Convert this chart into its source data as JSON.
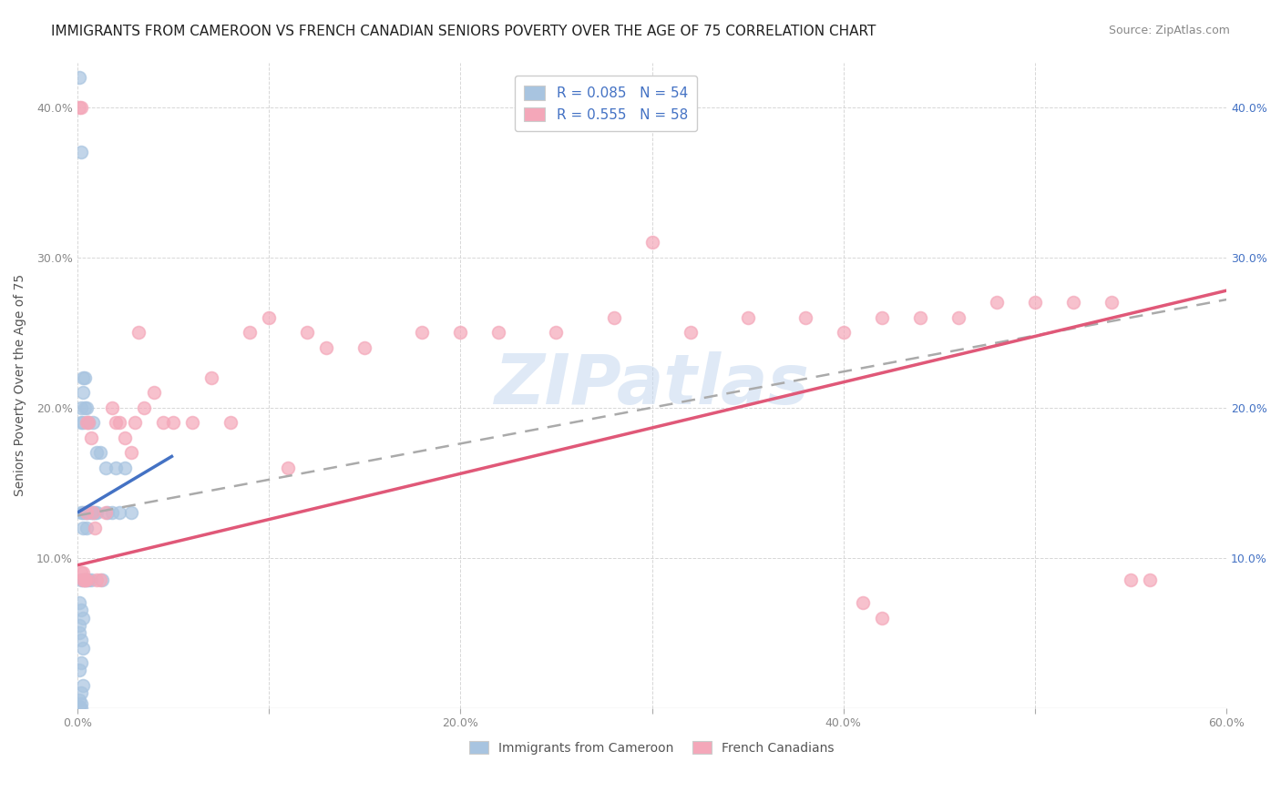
{
  "title": "IMMIGRANTS FROM CAMEROON VS FRENCH CANADIAN SENIORS POVERTY OVER THE AGE OF 75 CORRELATION CHART",
  "source": "Source: ZipAtlas.com",
  "ylabel": "Seniors Poverty Over the Age of 75",
  "xlim": [
    0.0,
    0.6
  ],
  "ylim": [
    0.0,
    0.43
  ],
  "xticks": [
    0.0,
    0.1,
    0.2,
    0.3,
    0.4,
    0.5,
    0.6
  ],
  "yticks": [
    0.0,
    0.1,
    0.2,
    0.3,
    0.4
  ],
  "xticklabels": [
    "0.0%",
    "",
    "20.0%",
    "",
    "40.0%",
    "",
    "60.0%"
  ],
  "yticklabels_left": [
    "",
    "10.0%",
    "20.0%",
    "30.0%",
    "40.0%"
  ],
  "yticklabels_right": [
    "",
    "10.0%",
    "20.0%",
    "30.0%",
    "40.0%"
  ],
  "legend_blue_label": "R = 0.085   N = 54",
  "legend_pink_label": "R = 0.555   N = 58",
  "legend_bottom_blue": "Immigrants from Cameroon",
  "legend_bottom_pink": "French Canadians",
  "blue_color": "#a8c4e0",
  "pink_color": "#f4a7b9",
  "blue_line_color": "#4472c4",
  "pink_line_color": "#e05878",
  "dash_line_color": "#aaaaaa",
  "watermark": "ZIPatlas",
  "bg_color": "#ffffff",
  "grid_color": "#d3d3d3",
  "blue_line_x0": 0.0,
  "blue_line_x1": 0.05,
  "blue_line_y0": 0.13,
  "blue_line_y1": 0.168,
  "pink_line_x0": 0.0,
  "pink_line_x1": 0.6,
  "pink_line_y0": 0.095,
  "pink_line_y1": 0.278,
  "dash_line_x0": 0.0,
  "dash_line_x1": 0.6,
  "dash_line_y0": 0.128,
  "dash_line_y1": 0.272,
  "title_fontsize": 11,
  "axis_fontsize": 10,
  "tick_fontsize": 9,
  "source_fontsize": 9,
  "blue_scatter_x": [
    0.001,
    0.001,
    0.002,
    0.002,
    0.002,
    0.002,
    0.002,
    0.003,
    0.003,
    0.003,
    0.003,
    0.003,
    0.003,
    0.004,
    0.004,
    0.004,
    0.004,
    0.005,
    0.005,
    0.005,
    0.005,
    0.006,
    0.006,
    0.006,
    0.007,
    0.007,
    0.008,
    0.008,
    0.009,
    0.01,
    0.01,
    0.012,
    0.013,
    0.015,
    0.016,
    0.018,
    0.02,
    0.022,
    0.025,
    0.028,
    0.001,
    0.002,
    0.003,
    0.001,
    0.002,
    0.003,
    0.002,
    0.001,
    0.003,
    0.002,
    0.001,
    0.002,
    0.001,
    0.002
  ],
  "blue_scatter_y": [
    0.42,
    0.055,
    0.37,
    0.2,
    0.19,
    0.13,
    0.085,
    0.22,
    0.21,
    0.19,
    0.13,
    0.12,
    0.085,
    0.22,
    0.2,
    0.13,
    0.085,
    0.2,
    0.13,
    0.12,
    0.085,
    0.19,
    0.13,
    0.085,
    0.13,
    0.085,
    0.19,
    0.13,
    0.13,
    0.17,
    0.13,
    0.17,
    0.085,
    0.16,
    0.13,
    0.13,
    0.16,
    0.13,
    0.16,
    0.13,
    0.07,
    0.065,
    0.06,
    0.05,
    0.045,
    0.04,
    0.03,
    0.025,
    0.015,
    0.01,
    0.005,
    0.003,
    0.001,
    0.0
  ],
  "pink_scatter_x": [
    0.001,
    0.002,
    0.003,
    0.004,
    0.005,
    0.005,
    0.006,
    0.007,
    0.008,
    0.009,
    0.01,
    0.012,
    0.015,
    0.018,
    0.02,
    0.022,
    0.025,
    0.028,
    0.03,
    0.032,
    0.035,
    0.04,
    0.045,
    0.05,
    0.06,
    0.07,
    0.08,
    0.09,
    0.1,
    0.11,
    0.12,
    0.13,
    0.15,
    0.18,
    0.2,
    0.22,
    0.25,
    0.28,
    0.3,
    0.32,
    0.35,
    0.38,
    0.4,
    0.42,
    0.44,
    0.46,
    0.48,
    0.5,
    0.52,
    0.54,
    0.002,
    0.003,
    0.004,
    0.005,
    0.55,
    0.56,
    0.41,
    0.42
  ],
  "pink_scatter_y": [
    0.4,
    0.4,
    0.085,
    0.085,
    0.19,
    0.13,
    0.19,
    0.18,
    0.13,
    0.12,
    0.085,
    0.085,
    0.13,
    0.2,
    0.19,
    0.19,
    0.18,
    0.17,
    0.19,
    0.25,
    0.2,
    0.21,
    0.19,
    0.19,
    0.19,
    0.22,
    0.19,
    0.25,
    0.26,
    0.16,
    0.25,
    0.24,
    0.24,
    0.25,
    0.25,
    0.25,
    0.25,
    0.26,
    0.31,
    0.25,
    0.26,
    0.26,
    0.25,
    0.26,
    0.26,
    0.26,
    0.27,
    0.27,
    0.27,
    0.27,
    0.09,
    0.09,
    0.085,
    0.085,
    0.085,
    0.085,
    0.07,
    0.06
  ]
}
